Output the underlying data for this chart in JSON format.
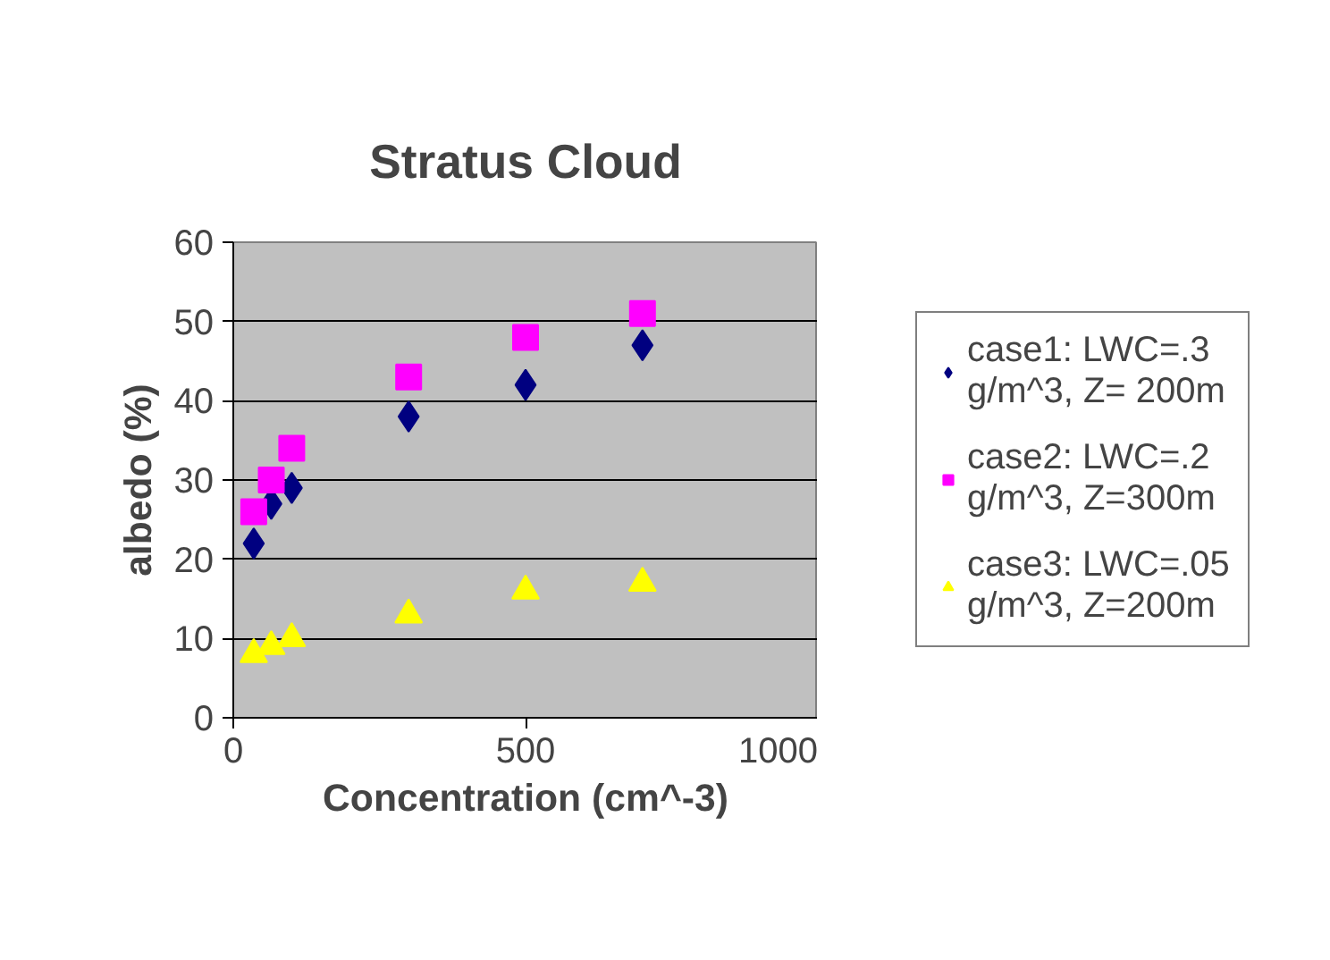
{
  "chart_data": {
    "type": "scatter",
    "title": "Stratus Cloud",
    "xlabel": "Concentration (cm^-3)",
    "ylabel": "albedo (%)",
    "xlim": [
      0,
      1000
    ],
    "xticks": [
      0,
      500,
      1000
    ],
    "ylim": [
      0,
      60
    ],
    "yticks": [
      0,
      10,
      20,
      30,
      40,
      50,
      60
    ],
    "grid": "y",
    "legend": "right",
    "series": [
      {
        "name": "case1: LWC=.3 g/m^3, Z= 200m",
        "color": "#000080",
        "marker": "diamond",
        "x": [
          35,
          65,
          100,
          300,
          500,
          700
        ],
        "values": [
          22,
          27,
          29,
          38,
          42,
          47
        ]
      },
      {
        "name": "case2: LWC=.2 g/m^3, Z=300m",
        "color": "#ff00ff",
        "marker": "square",
        "x": [
          35,
          65,
          100,
          300,
          500,
          700
        ],
        "values": [
          26,
          30,
          34,
          43,
          48,
          51
        ]
      },
      {
        "name": "case3: LWC=.05 g/m^3, Z=200m",
        "color": "#ffff00",
        "marker": "triangle",
        "x": [
          35,
          65,
          100,
          300,
          500,
          700
        ],
        "values": [
          8,
          9,
          10,
          13,
          16,
          17
        ]
      }
    ]
  }
}
